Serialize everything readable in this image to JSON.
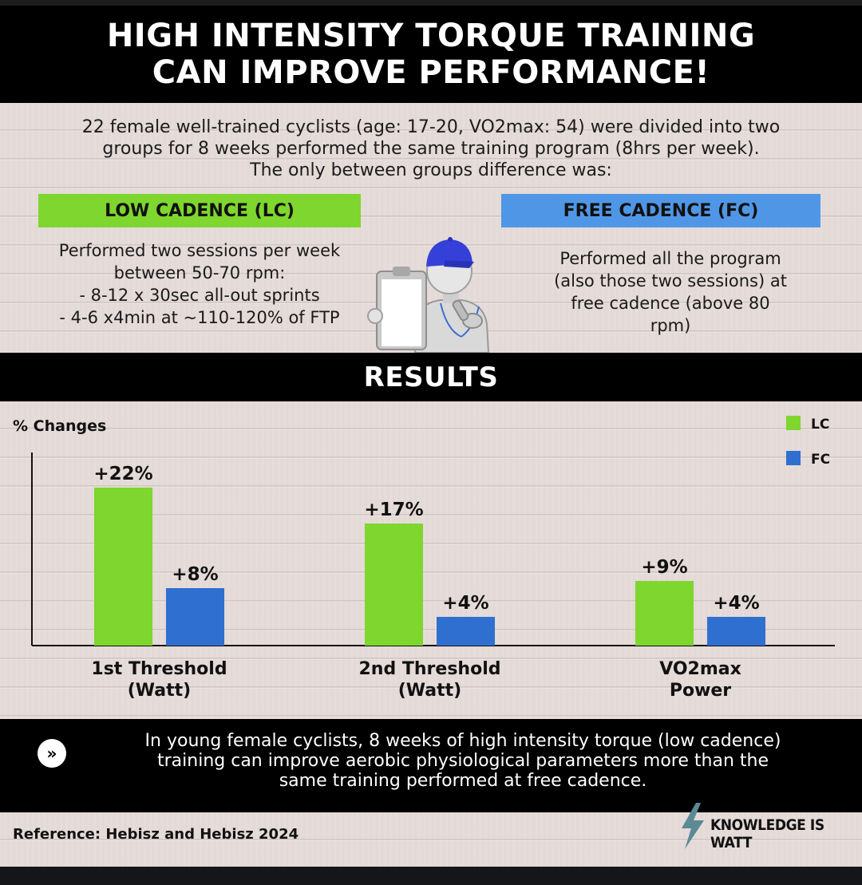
{
  "header": {
    "title_line1": "HIGH INTENSITY TORQUE TRAINING",
    "title_line2": "CAN IMPROVE PERFORMANCE!"
  },
  "intro": {
    "line1": "22 female well-trained cyclists (age: 17-20, VO2max: 54) were divided into two",
    "line2": "groups for 8 weeks performed the same training program (8hrs per week).",
    "line3": "The only between groups difference was:"
  },
  "groups": {
    "lc": {
      "label": "LOW CADENCE (LC)",
      "color": "#7ed62e",
      "lines": [
        "Performed two sessions per week",
        "between 50-70 rpm:",
        "- 8-12 x 30sec all-out sprints",
        "- 4-6 x4min at ~110-120% of FTP"
      ]
    },
    "fc": {
      "label": "FREE CADENCE (FC)",
      "color": "#4f97e6",
      "lines": [
        "Performed all the program",
        "(also those two sessions) at",
        "free cadence (above 80",
        "rpm)"
      ]
    }
  },
  "coach_icon": "coach-with-clipboard-and-whistle-icon",
  "results_title": "RESULTS",
  "chart_data": {
    "type": "bar",
    "ylabel": "% Changes",
    "categories": [
      [
        "1st Threshold",
        "(Watt)"
      ],
      [
        "2nd Threshold",
        "(Watt)"
      ],
      [
        "VO2max",
        "Power"
      ]
    ],
    "series": [
      {
        "name": "LC",
        "color": "#7ed62e",
        "values": [
          22,
          17,
          9
        ],
        "labels": [
          "+22%",
          "+17%",
          "+9%"
        ]
      },
      {
        "name": "FC",
        "color": "#2f6fd0",
        "values": [
          8,
          4,
          4
        ],
        "labels": [
          "+8%",
          "+4%",
          "+4%"
        ]
      }
    ],
    "ylim": [
      0,
      26
    ],
    "grid": false,
    "legend": "top-right"
  },
  "conclusion": {
    "icon": "double-chevron-right-icon",
    "line1": "In young female cyclists, 8 weeks of high intensity torque (low cadence)",
    "line2": "training can improve aerobic physiological parameters more than the",
    "line3": "same training performed at free cadence."
  },
  "reference": "Reference: Hebisz and Hebisz 2024",
  "brand": {
    "icon": "lightning-bolt-icon",
    "name": "KNOWLEDGE IS WATT",
    "icon_color": "#5a8a96"
  }
}
